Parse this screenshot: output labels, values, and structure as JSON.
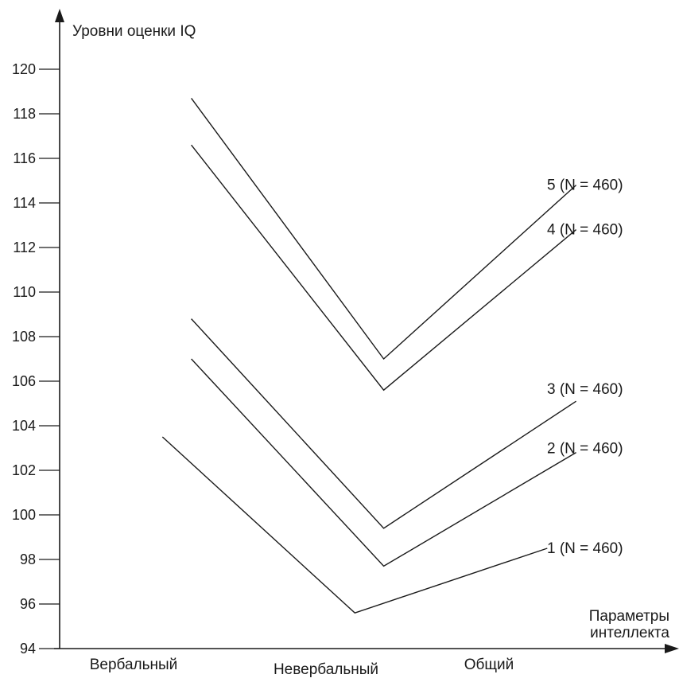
{
  "chart_data": {
    "type": "line",
    "ylabel": "Уровни оценки IQ",
    "xlabel": "Параметры интеллекта",
    "xlabel_lines": [
      "Параметры",
      "интеллекта"
    ],
    "categories": [
      "Вербальный",
      "Невербальный",
      "Общий"
    ],
    "yticks": [
      94,
      96,
      98,
      100,
      102,
      104,
      106,
      108,
      110,
      112,
      114,
      116,
      118,
      120
    ],
    "ylim": [
      94,
      120
    ],
    "grid": false,
    "legend": "right",
    "series": [
      {
        "name": "1 (N = 460)",
        "points": [
          [
            0.15,
            103.5
          ],
          [
            1.15,
            95.6
          ],
          [
            2.15,
            98.5
          ]
        ]
      },
      {
        "name": "2 (N = 460)",
        "points": [
          [
            0.3,
            107.0
          ],
          [
            1.3,
            97.7
          ],
          [
            2.3,
            102.8
          ]
        ]
      },
      {
        "name": "3 (N = 460)",
        "points": [
          [
            0.3,
            108.8
          ],
          [
            1.3,
            99.4
          ],
          [
            2.3,
            105.1
          ]
        ]
      },
      {
        "name": "4 (N = 460)",
        "points": [
          [
            0.3,
            116.6
          ],
          [
            1.3,
            105.6
          ],
          [
            2.3,
            112.8
          ]
        ]
      },
      {
        "name": "5 (N = 460)",
        "points": [
          [
            0.3,
            118.7
          ],
          [
            1.3,
            107.0
          ],
          [
            2.3,
            114.8
          ]
        ]
      }
    ]
  }
}
